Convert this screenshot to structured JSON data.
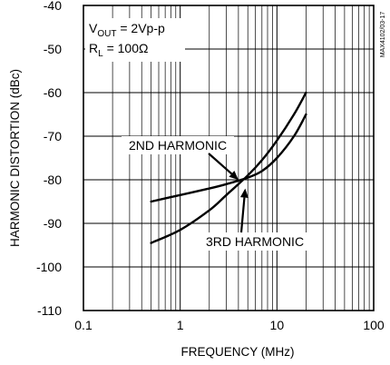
{
  "chart_data": {
    "type": "line",
    "title": "",
    "xlabel": "FREQUENCY (MHz)",
    "ylabel": "HARMONIC DISTORTION (dBc)",
    "x_scale": "log",
    "xlim": [
      0.1,
      100
    ],
    "ylim": [
      -110,
      -40
    ],
    "x_ticks": [
      0.1,
      1,
      10,
      100
    ],
    "x_tick_labels": [
      "0.1",
      "1",
      "10",
      "100"
    ],
    "y_ticks": [
      -40,
      -50,
      -60,
      -70,
      -80,
      -90,
      -100,
      -110
    ],
    "y_tick_labels": [
      "-40",
      "-50",
      "-60",
      "-70",
      "-80",
      "-90",
      "-100",
      "-110"
    ],
    "grid": true,
    "conditions": {
      "vout_prefix": "V",
      "vout_sub": "OUT",
      "vout_suffix": " = 2Vp-p",
      "rl_prefix": "R",
      "rl_sub": "L",
      "rl_suffix": " = 100Ω"
    },
    "side_label": "MAX4102/03-17",
    "series": [
      {
        "name": "2ND HARMONIC",
        "x": [
          0.5,
          1,
          2,
          3,
          5,
          7,
          10,
          15,
          20
        ],
        "y": [
          -85,
          -83.5,
          -82,
          -81,
          -79.5,
          -78,
          -75,
          -70,
          -65
        ]
      },
      {
        "name": "3RD HARMONIC",
        "x": [
          0.5,
          1,
          2,
          3,
          5,
          7,
          10,
          15,
          20
        ],
        "y": [
          -94.5,
          -91.5,
          -87,
          -83.5,
          -79,
          -75.5,
          -71,
          -65,
          -60
        ]
      }
    ],
    "annotations": [
      {
        "text": "2ND HARMONIC",
        "series": 0,
        "arrow_to": [
          4,
          -80
        ]
      },
      {
        "text": "3RD HARMONIC",
        "series": 1,
        "arrow_to": [
          4.7,
          -82
        ]
      }
    ]
  }
}
